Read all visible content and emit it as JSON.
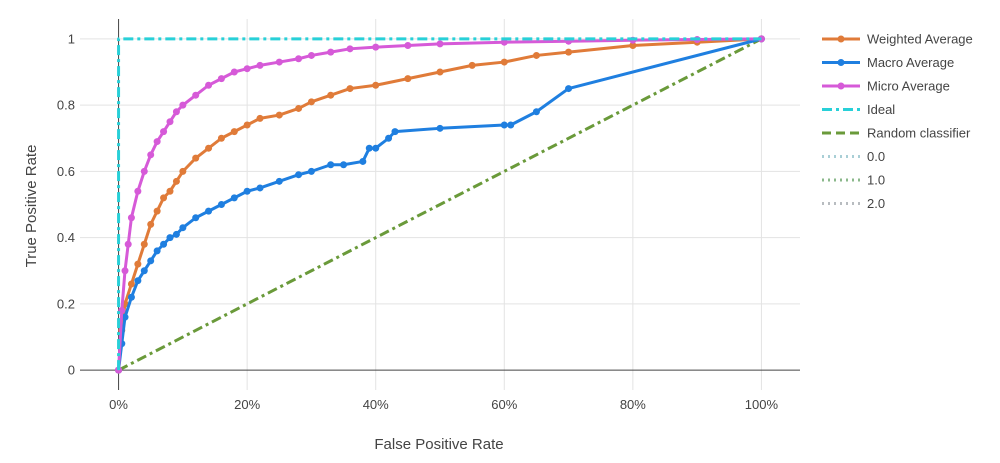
{
  "chart_data": {
    "type": "line",
    "title": "",
    "xlabel": "False Positive Rate",
    "ylabel": "True Positive Rate",
    "xlim": [
      -0.06,
      1.06
    ],
    "ylim": [
      -0.06,
      1.06
    ],
    "x_ticks": [
      {
        "value": 0,
        "label": "0%"
      },
      {
        "value": 0.2,
        "label": "20%"
      },
      {
        "value": 0.4,
        "label": "40%"
      },
      {
        "value": 0.6,
        "label": "60%"
      },
      {
        "value": 0.8,
        "label": "80%"
      },
      {
        "value": 1.0,
        "label": "100%"
      }
    ],
    "y_ticks": [
      {
        "value": 0,
        "label": "0"
      },
      {
        "value": 0.2,
        "label": "0.2"
      },
      {
        "value": 0.4,
        "label": "0.4"
      },
      {
        "value": 0.6,
        "label": "0.6"
      },
      {
        "value": 0.8,
        "label": "0.8"
      },
      {
        "value": 1.0,
        "label": "1"
      }
    ],
    "grid": true,
    "legend_position": "right",
    "series": [
      {
        "name": "Weighted Average",
        "color": "#e07b39",
        "style": "solid",
        "markers": true,
        "x": [
          0,
          0.005,
          0.01,
          0.02,
          0.03,
          0.04,
          0.05,
          0.06,
          0.07,
          0.08,
          0.09,
          0.1,
          0.12,
          0.14,
          0.16,
          0.18,
          0.2,
          0.22,
          0.25,
          0.28,
          0.3,
          0.33,
          0.36,
          0.4,
          0.45,
          0.5,
          0.55,
          0.6,
          0.65,
          0.7,
          0.8,
          0.9,
          1.0
        ],
        "y": [
          0,
          0.12,
          0.2,
          0.26,
          0.32,
          0.38,
          0.44,
          0.48,
          0.52,
          0.54,
          0.57,
          0.6,
          0.64,
          0.67,
          0.7,
          0.72,
          0.74,
          0.76,
          0.77,
          0.79,
          0.81,
          0.83,
          0.85,
          0.86,
          0.88,
          0.9,
          0.92,
          0.93,
          0.95,
          0.96,
          0.98,
          0.99,
          1.0
        ]
      },
      {
        "name": "Macro Average",
        "color": "#1f7fe0",
        "style": "solid",
        "markers": true,
        "x": [
          0,
          0.005,
          0.01,
          0.02,
          0.03,
          0.04,
          0.05,
          0.06,
          0.07,
          0.08,
          0.09,
          0.1,
          0.12,
          0.14,
          0.16,
          0.18,
          0.2,
          0.22,
          0.25,
          0.28,
          0.3,
          0.33,
          0.35,
          0.38,
          0.39,
          0.4,
          0.42,
          0.43,
          0.5,
          0.6,
          0.61,
          0.65,
          0.7,
          1.0
        ],
        "y": [
          0,
          0.08,
          0.16,
          0.22,
          0.27,
          0.3,
          0.33,
          0.36,
          0.38,
          0.4,
          0.41,
          0.43,
          0.46,
          0.48,
          0.5,
          0.52,
          0.54,
          0.55,
          0.57,
          0.59,
          0.6,
          0.62,
          0.62,
          0.63,
          0.67,
          0.67,
          0.7,
          0.72,
          0.73,
          0.74,
          0.74,
          0.78,
          0.85,
          1.0
        ]
      },
      {
        "name": "Micro Average",
        "color": "#d65ad8",
        "style": "solid",
        "markers": true,
        "x": [
          0,
          0.005,
          0.01,
          0.015,
          0.02,
          0.03,
          0.04,
          0.05,
          0.06,
          0.07,
          0.08,
          0.09,
          0.1,
          0.12,
          0.14,
          0.16,
          0.18,
          0.2,
          0.22,
          0.25,
          0.28,
          0.3,
          0.33,
          0.36,
          0.4,
          0.45,
          0.5,
          0.6,
          0.7,
          0.8,
          0.9,
          1.0
        ],
        "y": [
          0,
          0.18,
          0.3,
          0.38,
          0.46,
          0.54,
          0.6,
          0.65,
          0.69,
          0.72,
          0.75,
          0.78,
          0.8,
          0.83,
          0.86,
          0.88,
          0.9,
          0.91,
          0.92,
          0.93,
          0.94,
          0.95,
          0.96,
          0.97,
          0.975,
          0.98,
          0.985,
          0.99,
          0.993,
          0.996,
          0.998,
          1.0
        ]
      },
      {
        "name": "Ideal",
        "color": "#28d0d8",
        "style": "dashdot",
        "markers": false,
        "x": [
          0,
          0,
          1.0
        ],
        "y": [
          0,
          1.0,
          1.0
        ]
      },
      {
        "name": "Random classifier",
        "color": "#6a9a3a",
        "style": "dashdot",
        "markers": false,
        "x": [
          0,
          1.0
        ],
        "y": [
          0,
          1.0
        ]
      }
    ],
    "legend_items": [
      {
        "label": "Weighted Average",
        "color": "#e07b39",
        "style": "solid-marker"
      },
      {
        "label": "Macro Average",
        "color": "#1f7fe0",
        "style": "solid-marker"
      },
      {
        "label": "Micro Average",
        "color": "#d65ad8",
        "style": "solid-marker"
      },
      {
        "label": "Ideal",
        "color": "#28d0d8",
        "style": "dashdot"
      },
      {
        "label": "Random classifier",
        "color": "#6a9a3a",
        "style": "dash"
      },
      {
        "label": "0.0",
        "color": "#a9cfd6",
        "style": "dot"
      },
      {
        "label": "1.0",
        "color": "#8bb88b",
        "style": "dot"
      },
      {
        "label": "2.0",
        "color": "#b8bcc0",
        "style": "dot"
      }
    ]
  }
}
